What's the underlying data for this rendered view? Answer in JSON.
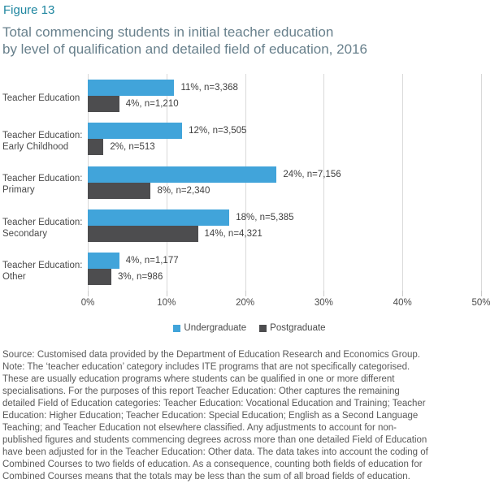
{
  "figure_label": "Figure 13",
  "title": {
    "lines": [
      "Total commencing students in initial teacher education",
      "by level of qualification and detailed field of education, 2016"
    ]
  },
  "colors": {
    "undergraduate": "#41A4DA",
    "postgraduate": "#4D4D4F",
    "heading_teal": "#1F86A0",
    "subtitle_gray_teal": "#68808C",
    "gridline": "#D9D9D9",
    "axis_text": "#4A4A4A",
    "footnote_text": "#595959"
  },
  "chart_data": {
    "type": "bar",
    "orientation": "horizontal",
    "title": "Total commencing students in initial teacher education by level of qualification and detailed field of education, 2016",
    "categories": [
      "Teacher Education",
      "Teacher Education: Early Childhood",
      "Teacher Education: Primary",
      "Teacher Education: Secondary",
      "Teacher Education: Other"
    ],
    "category_label_lines": [
      [
        "Teacher Education"
      ],
      [
        "Teacher Education:",
        "Early Childhood"
      ],
      [
        "Teacher Education:",
        "Primary"
      ],
      [
        "Teacher Education:",
        "Secondary"
      ],
      [
        "Teacher Education:",
        "Other"
      ]
    ],
    "series": [
      {
        "name": "Undergraduate",
        "color": "#41A4DA",
        "values_pct": [
          11,
          12,
          24,
          18,
          4
        ],
        "counts": [
          3368,
          3505,
          7156,
          5385,
          1177
        ],
        "labels": [
          "11%, n=3,368",
          "12%, n=3,505",
          "24%, n=7,156",
          "18%, n=5,385",
          "4%, n=1,177"
        ]
      },
      {
        "name": "Postgraduate",
        "color": "#4D4D4F",
        "values_pct": [
          4,
          2,
          8,
          14,
          3
        ],
        "counts": [
          1210,
          513,
          2340,
          4321,
          986
        ],
        "labels": [
          "4%, n=1,210",
          "2%, n=513",
          "8%, n=2,340",
          "14%, n=4,321",
          "3%, n=986"
        ]
      }
    ],
    "x_ticks_pct": [
      0,
      10,
      20,
      30,
      40,
      50
    ],
    "x_tick_labels": [
      "0%",
      "10%",
      "20%",
      "30%",
      "40%",
      "50%"
    ],
    "xlim": [
      0,
      50
    ],
    "grid": true,
    "legend_position": "bottom"
  },
  "legend": {
    "items": [
      {
        "label": "Undergraduate",
        "color": "#41A4DA"
      },
      {
        "label": "Postgraduate",
        "color": "#4D4D4F"
      }
    ]
  },
  "footnote_lines": [
    "Source: Customised data provided by the Department of Education Research and Economics Group.",
    "Note: The ‘teacher education’ category includes ITE programs that are not specifically categorised.",
    "These are usually education programs where students can be qualified in one or more different",
    "specialisations. For the purposes of this report Teacher Education: Other captures the remaining",
    "detailed Field of Education categories: Teacher Education: Vocational Education and Training; Teacher",
    "Education: Higher Education; Teacher Education: Special Education; English as a Second Language",
    "Teaching; and Teacher Education not elsewhere classified. Any adjustments to account for non-",
    "published figures and students commencing degrees across more than one detailed Field of Education",
    "have been adjusted for in the Teacher Education: Other data. The data takes into account the coding of",
    "Combined Courses to two fields of education. As a consequence, counting both fields of education for",
    "Combined Courses means that the totals may be less than the sum of all broad fields of education."
  ]
}
